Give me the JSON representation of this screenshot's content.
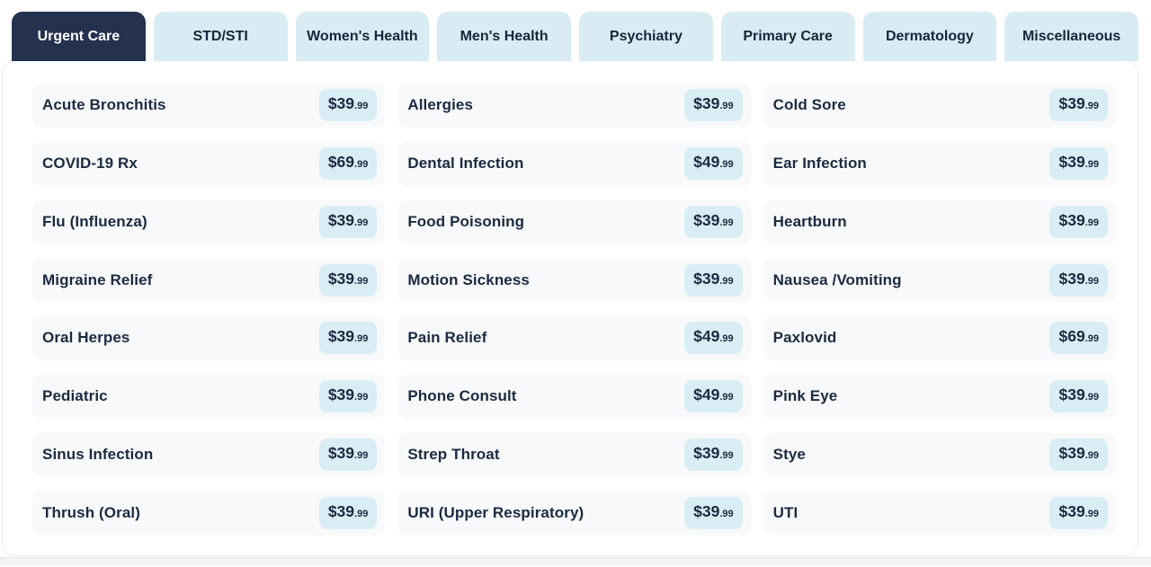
{
  "tabs": {
    "active_label": "Urgent Care",
    "items": [
      {
        "label": "Urgent Care",
        "active": true
      },
      {
        "label": "STD/STI",
        "active": false
      },
      {
        "label": "Women's Health",
        "active": false
      },
      {
        "label": "Men's Health",
        "active": false
      },
      {
        "label": "Psychiatry",
        "active": false
      },
      {
        "label": "Primary Care",
        "active": false
      },
      {
        "label": "Dermatology",
        "active": false
      },
      {
        "label": "Miscellaneous",
        "active": false
      }
    ]
  },
  "pricing": {
    "columns": [
      {
        "items": [
          {
            "label": "Acute Bronchitis",
            "dollars": "$39",
            "cents": ".99"
          },
          {
            "label": "COVID-19 Rx",
            "dollars": "$69",
            "cents": ".99"
          },
          {
            "label": "Flu (Influenza)",
            "dollars": "$39",
            "cents": ".99"
          },
          {
            "label": "Migraine Relief",
            "dollars": "$39",
            "cents": ".99"
          },
          {
            "label": "Oral Herpes",
            "dollars": "$39",
            "cents": ".99"
          },
          {
            "label": "Pediatric",
            "dollars": "$39",
            "cents": ".99"
          },
          {
            "label": "Sinus Infection",
            "dollars": "$39",
            "cents": ".99"
          },
          {
            "label": "Thrush (Oral)",
            "dollars": "$39",
            "cents": ".99"
          }
        ]
      },
      {
        "items": [
          {
            "label": "Allergies",
            "dollars": "$39",
            "cents": ".99"
          },
          {
            "label": "Dental Infection",
            "dollars": "$49",
            "cents": ".99"
          },
          {
            "label": "Food Poisoning",
            "dollars": "$39",
            "cents": ".99"
          },
          {
            "label": "Motion Sickness",
            "dollars": "$39",
            "cents": ".99"
          },
          {
            "label": "Pain Relief",
            "dollars": "$49",
            "cents": ".99"
          },
          {
            "label": "Phone Consult",
            "dollars": "$49",
            "cents": ".99"
          },
          {
            "label": "Strep Throat",
            "dollars": "$39",
            "cents": ".99"
          },
          {
            "label": "URI (Upper Respiratory)",
            "dollars": "$39",
            "cents": ".99"
          }
        ]
      },
      {
        "items": [
          {
            "label": "Cold Sore",
            "dollars": "$39",
            "cents": ".99"
          },
          {
            "label": "Ear Infection",
            "dollars": "$39",
            "cents": ".99"
          },
          {
            "label": "Heartburn",
            "dollars": "$39",
            "cents": ".99"
          },
          {
            "label": "Nausea /Vomiting",
            "dollars": "$39",
            "cents": ".99"
          },
          {
            "label": "Paxlovid",
            "dollars": "$69",
            "cents": ".99"
          },
          {
            "label": "Pink Eye",
            "dollars": "$39",
            "cents": ".99"
          },
          {
            "label": "Stye",
            "dollars": "$39",
            "cents": ".99"
          },
          {
            "label": "UTI",
            "dollars": "$39",
            "cents": ".99"
          }
        ]
      }
    ]
  },
  "colors": {
    "active_tab_bg": "#243250",
    "inactive_tab_bg": "#d9ecf3",
    "badge_bg": "#d9edf4",
    "card_bg": "#f7f9fa",
    "text": "#1b2a41"
  }
}
